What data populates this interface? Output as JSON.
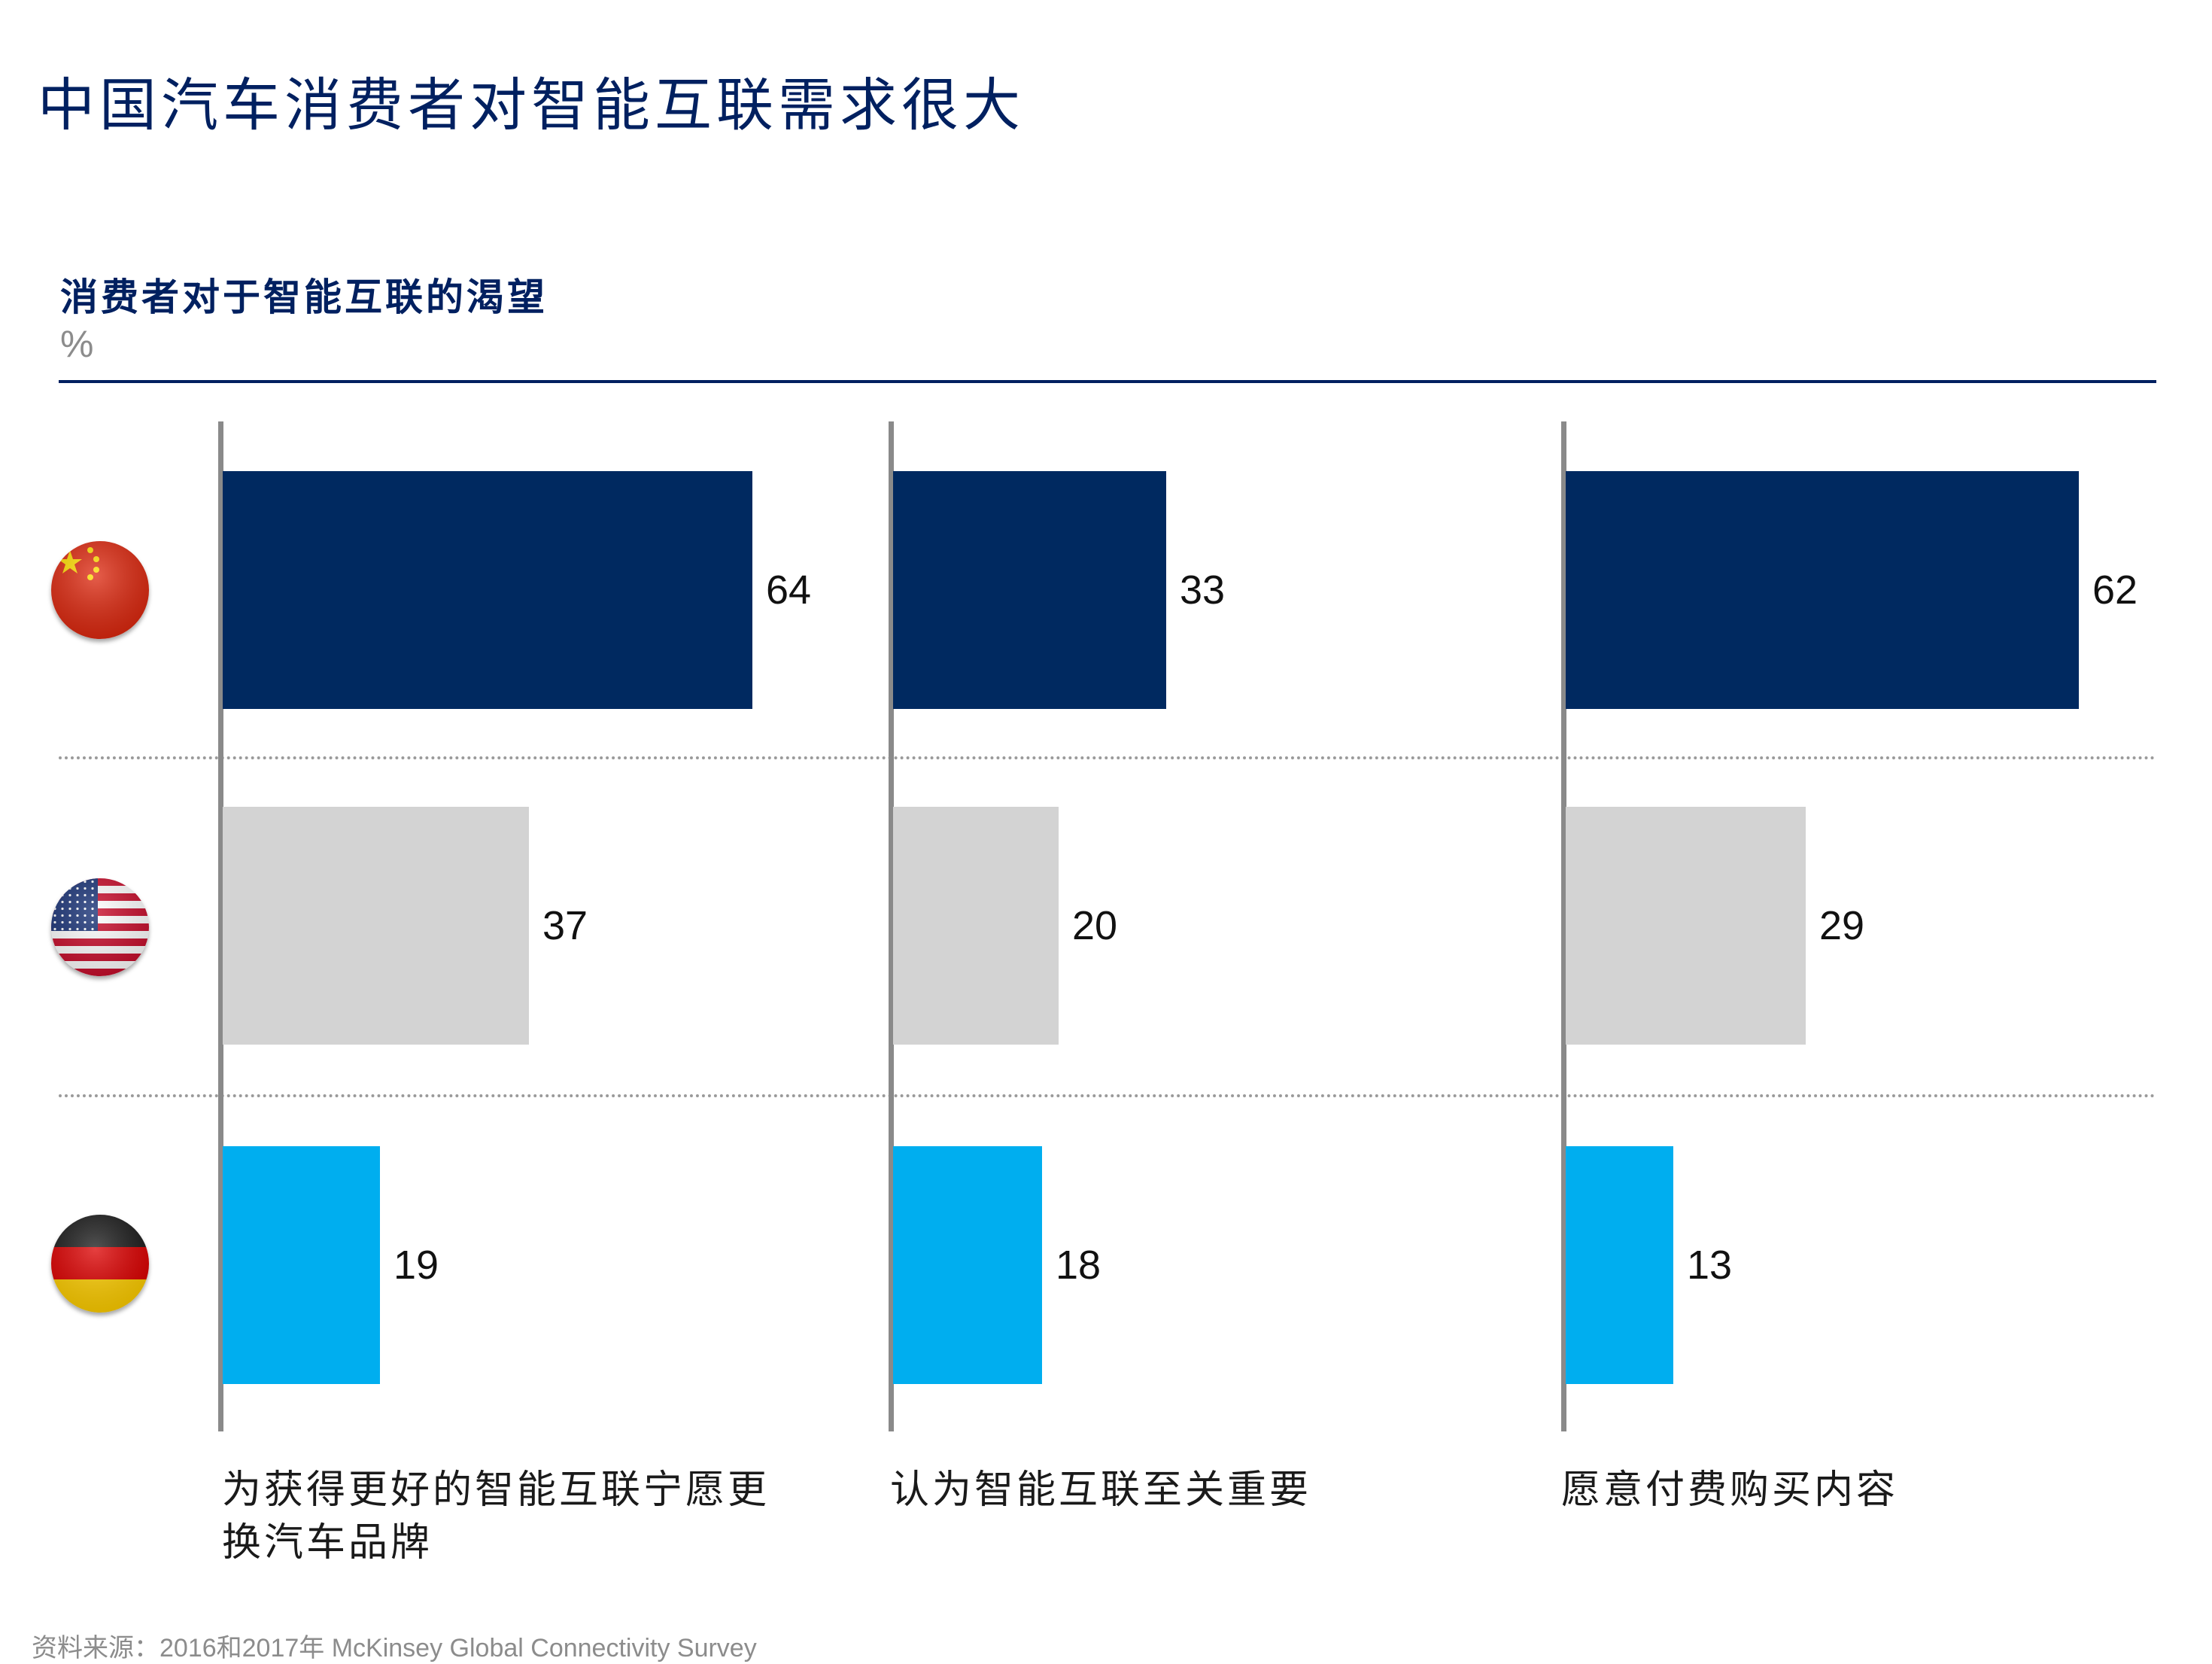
{
  "title": "中国汽车消费者对智能互联需求很大",
  "subtitle": "消费者对于智能互联的渴望",
  "unit": "%",
  "source": "资料来源：2016和2017年 McKinsey Global Connectivity Survey",
  "colors": {
    "china": "#002960",
    "usa": "#d3d3d3",
    "germany": "#00aeef",
    "title": "#002060",
    "axis": "#8a8a8a"
  },
  "countries": [
    {
      "id": "china",
      "flag_icon": "china-flag-icon"
    },
    {
      "id": "usa",
      "flag_icon": "usa-flag-icon"
    },
    {
      "id": "germany",
      "flag_icon": "germany-flag-icon"
    }
  ],
  "chart_data": {
    "type": "bar",
    "orientation": "horizontal",
    "title": "消费者对于智能互联的渴望",
    "ylabel": "%",
    "xlim": [
      0,
      64
    ],
    "groups": [
      {
        "label": "为获得更好的智能互联宁愿更换汽车品牌",
        "values": [
          64,
          37,
          19
        ],
        "value_labels": [
          "64",
          "37",
          "19"
        ]
      },
      {
        "label": "认为智能互联至关重要",
        "values": [
          33,
          20,
          18
        ],
        "value_labels": [
          "33",
          "20",
          "18"
        ]
      },
      {
        "label": "愿意付费购买内容",
        "values": [
          62,
          29,
          13
        ],
        "value_labels": [
          "62",
          "29",
          "13"
        ]
      }
    ]
  }
}
